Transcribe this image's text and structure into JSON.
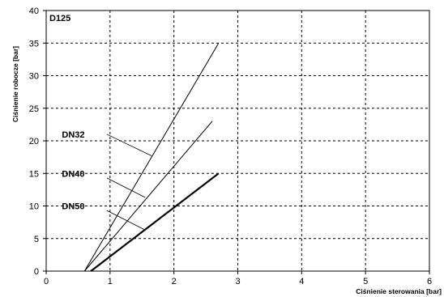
{
  "chart_data": {
    "type": "line",
    "title": "D125",
    "xlabel": "Ciśnienie sterowania [bar]",
    "ylabel": "Ciśnienie robocze [bar]",
    "xlim": [
      0,
      6
    ],
    "ylim": [
      0,
      40
    ],
    "x_ticks": [
      0,
      1,
      2,
      3,
      4,
      5,
      6
    ],
    "y_ticks": [
      0,
      5,
      10,
      15,
      20,
      25,
      30,
      35,
      40
    ],
    "grid": true,
    "grid_style": "dashed",
    "series": [
      {
        "name": "DN32",
        "x": [
          0.6,
          2.7
        ],
        "y": [
          0,
          35
        ],
        "bold": false,
        "label_x": 0.5,
        "label_y": 21
      },
      {
        "name": "DN40",
        "x": [
          0.6,
          2.6
        ],
        "y": [
          0,
          23
        ],
        "bold": false,
        "label_x": 0.5,
        "label_y": 15
      },
      {
        "name": "DN50",
        "x": [
          0.7,
          2.7
        ],
        "y": [
          0,
          15
        ],
        "bold": true,
        "label_x": 0.5,
        "label_y": 10
      }
    ],
    "leaders": [
      {
        "series": "DN32",
        "from": [
          0.95,
          21
        ],
        "to": [
          1.65,
          17.7
        ]
      },
      {
        "series": "DN40",
        "from": [
          0.95,
          14.3
        ],
        "to": [
          1.55,
          11.3
        ]
      },
      {
        "series": "DN50",
        "from": [
          0.95,
          9.3
        ],
        "to": [
          1.55,
          6.3
        ]
      }
    ],
    "colors": {
      "line": "#000000",
      "grid": "#000000",
      "background": "#ffffff"
    }
  }
}
